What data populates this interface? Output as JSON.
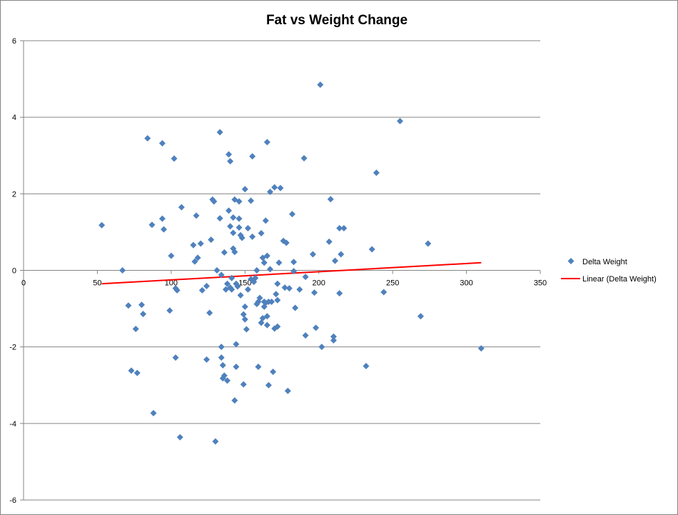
{
  "chart_data": {
    "type": "scatter",
    "title": "Fat vs Weight Change",
    "xlabel": "",
    "ylabel": "",
    "xlim": [
      0,
      350
    ],
    "ylim": [
      -6,
      6
    ],
    "x_ticks": [
      0,
      50,
      100,
      150,
      200,
      250,
      300,
      350
    ],
    "y_ticks": [
      -6,
      -4,
      -2,
      0,
      2,
      4,
      6
    ],
    "grid": "horizontal",
    "legend_position": "right",
    "colors": {
      "points": "#4F81BD",
      "trendline": "#FF0000",
      "grid": "#868686"
    },
    "series": [
      {
        "name": "Delta Weight",
        "marker": "diamond",
        "points": [
          [
            53,
            1.18
          ],
          [
            67,
            0.0
          ],
          [
            71,
            -0.92
          ],
          [
            73,
            -2.62
          ],
          [
            76,
            -1.53
          ],
          [
            77,
            -2.68
          ],
          [
            80,
            -0.9
          ],
          [
            81,
            -1.14
          ],
          [
            84,
            3.45
          ],
          [
            87,
            1.19
          ],
          [
            88,
            -3.73
          ],
          [
            94,
            3.32
          ],
          [
            94,
            1.35
          ],
          [
            95,
            1.07
          ],
          [
            99,
            -1.05
          ],
          [
            100,
            0.38
          ],
          [
            102,
            2.92
          ],
          [
            103,
            -0.47
          ],
          [
            104,
            -0.52
          ],
          [
            103,
            -2.28
          ],
          [
            106,
            -4.36
          ],
          [
            107,
            1.65
          ],
          [
            115,
            0.66
          ],
          [
            116,
            0.23
          ],
          [
            117,
            1.43
          ],
          [
            118,
            0.33
          ],
          [
            120,
            0.7
          ],
          [
            121,
            -0.52
          ],
          [
            124,
            -0.41
          ],
          [
            124,
            -2.33
          ],
          [
            126,
            -1.11
          ],
          [
            127,
            0.8
          ],
          [
            128,
            1.85
          ],
          [
            129,
            1.8
          ],
          [
            130,
            -4.47
          ],
          [
            131,
            0.0
          ],
          [
            133,
            1.36
          ],
          [
            133,
            3.61
          ],
          [
            134,
            -0.12
          ],
          [
            134,
            -2.0
          ],
          [
            134,
            -2.28
          ],
          [
            135,
            -2.48
          ],
          [
            135,
            -2.82
          ],
          [
            136,
            -2.75
          ],
          [
            136,
            0.47
          ],
          [
            137,
            -0.5
          ],
          [
            138,
            -2.88
          ],
          [
            138,
            -0.35
          ],
          [
            139,
            3.03
          ],
          [
            139,
            1.56
          ],
          [
            140,
            2.85
          ],
          [
            140,
            1.15
          ],
          [
            140,
            -0.45
          ],
          [
            141,
            -0.2
          ],
          [
            141,
            -0.5
          ],
          [
            142,
            1.38
          ],
          [
            142,
            0.98
          ],
          [
            142,
            0.57
          ],
          [
            143,
            -3.4
          ],
          [
            143,
            1.85
          ],
          [
            143,
            0.48
          ],
          [
            144,
            -1.93
          ],
          [
            144,
            -2.52
          ],
          [
            144,
            -0.35
          ],
          [
            145,
            -0.42
          ],
          [
            146,
            1.35
          ],
          [
            146,
            1.8
          ],
          [
            146,
            1.12
          ],
          [
            147,
            -0.65
          ],
          [
            147,
            0.92
          ],
          [
            148,
            0.85
          ],
          [
            149,
            -2.98
          ],
          [
            149,
            -1.15
          ],
          [
            150,
            -1.28
          ],
          [
            150,
            -0.95
          ],
          [
            150,
            2.12
          ],
          [
            151,
            -1.54
          ],
          [
            152,
            -0.5
          ],
          [
            152,
            1.1
          ],
          [
            154,
            1.82
          ],
          [
            154,
            -0.23
          ],
          [
            155,
            2.98
          ],
          [
            155,
            0.88
          ],
          [
            156,
            -0.3
          ],
          [
            157,
            -0.2
          ],
          [
            158,
            0.0
          ],
          [
            158,
            -0.88
          ],
          [
            159,
            -0.82
          ],
          [
            159,
            -2.52
          ],
          [
            160,
            -0.72
          ],
          [
            161,
            -1.37
          ],
          [
            161,
            0.97
          ],
          [
            162,
            -1.25
          ],
          [
            162,
            0.33
          ],
          [
            163,
            -0.82
          ],
          [
            163,
            -0.95
          ],
          [
            163,
            0.2
          ],
          [
            164,
            1.3
          ],
          [
            164,
            -0.85
          ],
          [
            165,
            3.35
          ],
          [
            165,
            -1.43
          ],
          [
            165,
            0.38
          ],
          [
            165,
            -1.2
          ],
          [
            166,
            -3.0
          ],
          [
            166,
            -0.82
          ],
          [
            167,
            2.05
          ],
          [
            167,
            0.03
          ],
          [
            168,
            -0.82
          ],
          [
            169,
            -2.65
          ],
          [
            170,
            -1.52
          ],
          [
            170,
            2.17
          ],
          [
            171,
            -0.62
          ],
          [
            172,
            -1.47
          ],
          [
            172,
            -0.35
          ],
          [
            172,
            -0.78
          ],
          [
            173,
            0.2
          ],
          [
            174,
            2.15
          ],
          [
            176,
            0.77
          ],
          [
            177,
            -0.45
          ],
          [
            178,
            0.72
          ],
          [
            179,
            -3.15
          ],
          [
            180,
            -0.47
          ],
          [
            182,
            1.47
          ],
          [
            183,
            0.22
          ],
          [
            183,
            -0.02
          ],
          [
            184,
            -0.98
          ],
          [
            187,
            -0.5
          ],
          [
            190,
            2.93
          ],
          [
            191,
            -0.17
          ],
          [
            191,
            -1.7
          ],
          [
            196,
            0.42
          ],
          [
            197,
            -0.58
          ],
          [
            198,
            -1.5
          ],
          [
            201,
            4.85
          ],
          [
            202,
            -2.0
          ],
          [
            207,
            0.75
          ],
          [
            208,
            1.86
          ],
          [
            210,
            -1.73
          ],
          [
            210,
            -1.83
          ],
          [
            211,
            0.25
          ],
          [
            214,
            -0.6
          ],
          [
            214,
            1.1
          ],
          [
            215,
            0.42
          ],
          [
            217,
            1.1
          ],
          [
            232,
            -2.5
          ],
          [
            236,
            0.55
          ],
          [
            239,
            2.55
          ],
          [
            244,
            -0.57
          ],
          [
            255,
            3.9
          ],
          [
            269,
            -1.2
          ],
          [
            274,
            0.7
          ],
          [
            310,
            -2.04
          ]
        ]
      },
      {
        "name": "Linear (Delta Weight)",
        "type": "line",
        "points": [
          [
            53,
            -0.35
          ],
          [
            310,
            0.2
          ]
        ]
      }
    ]
  }
}
